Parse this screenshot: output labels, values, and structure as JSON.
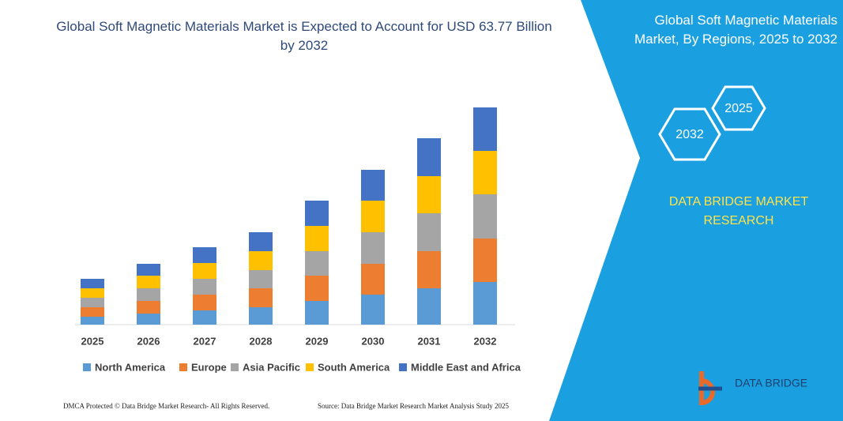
{
  "chart_data": {
    "type": "bar",
    "stacked": true,
    "title": "Global Soft Magnetic Materials Market is Expected to Account for USD 63.77 Billion by 2032",
    "categories": [
      "2025",
      "2026",
      "2027",
      "2028",
      "2029",
      "2030",
      "2031",
      "2032"
    ],
    "series": [
      {
        "name": "North America",
        "color": "#5b9bd5",
        "values": [
          10,
          14,
          18,
          22,
          30,
          38,
          46,
          54
        ]
      },
      {
        "name": "Europe",
        "color": "#ed7d31",
        "values": [
          12,
          16,
          20,
          24,
          32,
          39,
          47,
          55
        ]
      },
      {
        "name": "Asia Pacific",
        "color": "#a5a5a5",
        "values": [
          12,
          16,
          20,
          23,
          31,
          40,
          48,
          56
        ]
      },
      {
        "name": "South America",
        "color": "#ffc000",
        "values": [
          12,
          16,
          20,
          24,
          32,
          40,
          47,
          55
        ]
      },
      {
        "name": "Middle East and Africa",
        "color": "#4472c4",
        "values": [
          12,
          15,
          20,
          24,
          32,
          39,
          48,
          55
        ]
      }
    ],
    "ylim": [
      0,
      280
    ],
    "legend": "bottom"
  },
  "side_panel": {
    "title": "Global Soft Magnetic Materials Market, By Regions, 2025 to 2032",
    "hexagons": [
      "2025",
      "2032"
    ],
    "brand": "DATA BRIDGE MARKET RESEARCH"
  },
  "logo": {
    "name": "DATA BRIDGE"
  },
  "footer": {
    "left": "DMCA Protected © Data Bridge Market Research- All Rights Reserved.",
    "right": "Source: Data Bridge Market Research Market Analysis Study 2025"
  }
}
